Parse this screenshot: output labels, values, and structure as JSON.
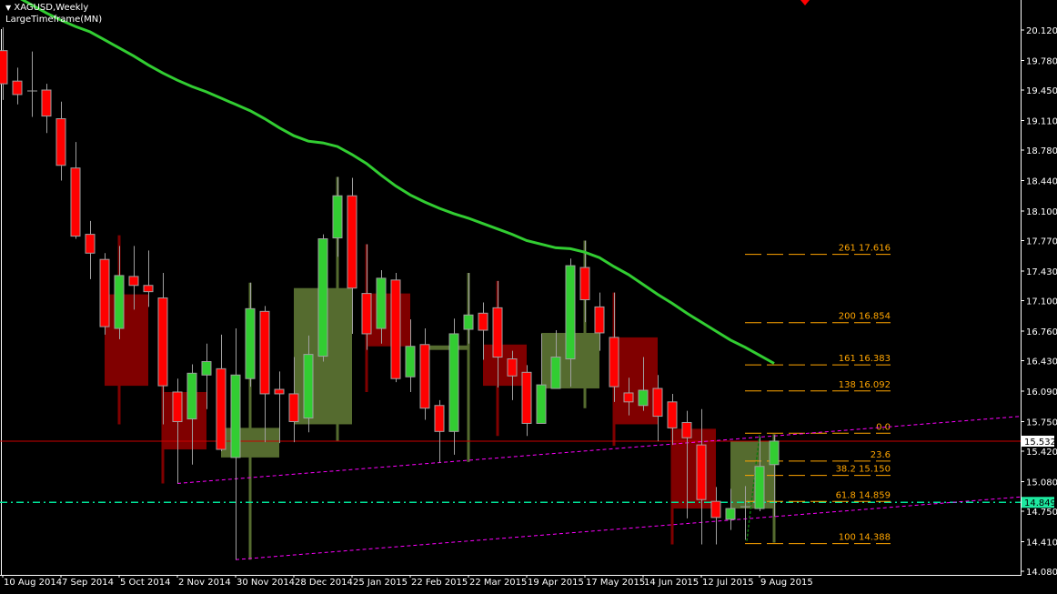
{
  "header": {
    "symbol_title": "XAGUSD,Weekly",
    "indicator": "LargeTimeframe(MN)"
  },
  "colors": {
    "bull": "#32cd32",
    "bear": "#ff0000",
    "candle_border": "#a0a0a0",
    "monthly_bull": "#556b2f",
    "monthly_bear": "#800000",
    "ma": "#32cd32",
    "fib": "#ffa500",
    "trendline": "#ff00ff",
    "bid_line": "#cc0000",
    "level_line": "#00e69a"
  },
  "chart_data": {
    "type": "candlestick",
    "price_axis": {
      "range": [
        14.08,
        20.12
      ],
      "ticks": [
        "20.120",
        "19.780",
        "19.450",
        "19.110",
        "18.780",
        "18.440",
        "18.100",
        "17.770",
        "17.430",
        "17.100",
        "16.760",
        "16.430",
        "16.090",
        "15.750",
        "15.420",
        "15.080",
        "14.750",
        "14.410",
        "14.080"
      ]
    },
    "time_axis": {
      "labels": [
        "10 Aug 2014",
        "7 Sep 2014",
        "5 Oct 2014",
        "2 Nov 2014",
        "30 Nov 2014",
        "28 Dec 2014",
        "25 Jan 2015",
        "22 Feb 2015",
        "22 Mar 2015",
        "19 Apr 2015",
        "17 May 2015",
        "14 Jun 2015",
        "12 Jul 2015",
        "9 Aug 2015"
      ],
      "label_every_weeks": 4
    },
    "weekly": [
      [
        19.89,
        19.52,
        20.15,
        19.34
      ],
      [
        19.55,
        19.4,
        19.7,
        19.29
      ],
      [
        19.44,
        19.44,
        19.88,
        19.15
      ],
      [
        19.45,
        19.16,
        19.52,
        18.97
      ],
      [
        19.13,
        18.61,
        19.32,
        18.44
      ],
      [
        18.58,
        17.82,
        18.87,
        17.79
      ],
      [
        17.84,
        17.63,
        17.99,
        17.34
      ],
      [
        17.56,
        16.81,
        17.63,
        16.72
      ],
      [
        16.79,
        17.38,
        17.71,
        16.67
      ],
      [
        17.37,
        17.27,
        17.71,
        17.0
      ],
      [
        17.27,
        17.2,
        17.66,
        17.03
      ],
      [
        17.13,
        16.15,
        17.41,
        15.72
      ],
      [
        16.08,
        15.75,
        16.23,
        15.06
      ],
      [
        15.78,
        16.29,
        16.39,
        15.27
      ],
      [
        16.27,
        16.42,
        16.62,
        15.89
      ],
      [
        16.34,
        15.44,
        16.72,
        15.42
      ],
      [
        15.35,
        16.27,
        16.79,
        14.21
      ],
      [
        16.23,
        17.01,
        17.3,
        16.14
      ],
      [
        16.98,
        16.06,
        17.04,
        15.52
      ],
      [
        16.11,
        16.06,
        16.31,
        15.51
      ],
      [
        16.06,
        15.75,
        16.47,
        15.52
      ],
      [
        15.79,
        16.5,
        16.71,
        15.63
      ],
      [
        16.48,
        17.79,
        17.84,
        16.42
      ],
      [
        17.8,
        18.27,
        18.48,
        17.59
      ],
      [
        18.27,
        17.24,
        18.47,
        16.73
      ],
      [
        17.18,
        16.73,
        17.73,
        16.55
      ],
      [
        16.79,
        17.35,
        17.44,
        16.62
      ],
      [
        17.33,
        16.23,
        17.41,
        16.19
      ],
      [
        16.25,
        16.59,
        16.89,
        16.08
      ],
      [
        16.61,
        15.9,
        16.79,
        15.77
      ],
      [
        15.93,
        15.64,
        15.99,
        15.29
      ],
      [
        15.64,
        16.73,
        16.9,
        15.38
      ],
      [
        16.78,
        16.94,
        17.41,
        16.62
      ],
      [
        16.96,
        16.77,
        17.08,
        16.44
      ],
      [
        17.02,
        16.47,
        17.32,
        16.13
      ],
      [
        16.45,
        16.26,
        16.54,
        15.99
      ],
      [
        16.3,
        15.73,
        16.38,
        15.59
      ],
      [
        15.73,
        16.16,
        16.73,
        15.73
      ],
      [
        16.12,
        16.47,
        16.77,
        16.12
      ],
      [
        16.45,
        17.49,
        17.57,
        16.14
      ],
      [
        17.47,
        17.11,
        17.77,
        16.86
      ],
      [
        17.03,
        16.74,
        17.19,
        16.54
      ],
      [
        16.69,
        16.14,
        17.19,
        15.97
      ],
      [
        16.07,
        15.97,
        16.24,
        15.82
      ],
      [
        15.93,
        16.1,
        16.47,
        15.87
      ],
      [
        16.12,
        15.81,
        16.27,
        15.53
      ],
      [
        15.97,
        15.68,
        16.06,
        15.49
      ],
      [
        15.74,
        15.57,
        15.87,
        14.67
      ],
      [
        15.49,
        14.88,
        15.89,
        14.38
      ],
      [
        14.86,
        14.68,
        15.02,
        14.38
      ],
      [
        14.66,
        14.78,
        15.0,
        14.54
      ],
      [
        14.8,
        14.8,
        15.03,
        14.43
      ],
      [
        14.78,
        15.25,
        15.58,
        14.75
      ],
      [
        15.27,
        15.532,
        15.6,
        14.69
      ]
    ],
    "monthly": [
      {
        "weeks": [
          7,
          10
        ],
        "ohlc": [
          17.17,
          16.15,
          17.83,
          15.72
        ]
      },
      {
        "weeks": [
          11,
          14
        ],
        "ohlc": [
          16.08,
          15.44,
          16.72,
          15.06
        ]
      },
      {
        "weeks": [
          15,
          19
        ],
        "ohlc": [
          15.35,
          15.68,
          17.3,
          14.21
        ]
      },
      {
        "weeks": [
          20,
          24
        ],
        "ohlc": [
          15.72,
          17.24,
          18.48,
          15.53
        ]
      },
      {
        "weeks": [
          25,
          28
        ],
        "ohlc": [
          17.18,
          16.59,
          17.73,
          16.08
        ]
      },
      {
        "weeks": [
          29,
          32
        ],
        "ohlc": [
          16.55,
          16.6,
          17.41,
          15.3
        ]
      },
      {
        "weeks": [
          33,
          36
        ],
        "ohlc": [
          16.61,
          16.15,
          17.32,
          15.59
        ]
      },
      {
        "weeks": [
          37,
          41
        ],
        "ohlc": [
          16.12,
          16.74,
          17.77,
          15.9
        ]
      },
      {
        "weeks": [
          42,
          45
        ],
        "ohlc": [
          16.69,
          15.72,
          17.19,
          15.48
        ]
      },
      {
        "weeks": [
          46,
          49
        ],
        "ohlc": [
          15.67,
          14.78,
          15.9,
          14.38
        ]
      },
      {
        "weeks": [
          50,
          53
        ],
        "ohlc": [
          14.78,
          15.53,
          15.61,
          14.4
        ]
      }
    ],
    "moving_average": [
      20.56,
      20.49,
      20.4,
      20.31,
      20.23,
      20.16,
      20.1,
      20.01,
      19.92,
      19.83,
      19.73,
      19.64,
      19.56,
      19.49,
      19.43,
      19.36,
      19.29,
      19.22,
      19.13,
      19.03,
      18.94,
      18.88,
      18.86,
      18.82,
      18.73,
      18.63,
      18.5,
      18.38,
      18.28,
      18.2,
      18.13,
      18.07,
      18.02,
      17.96,
      17.9,
      17.84,
      17.77,
      17.73,
      17.69,
      17.68,
      17.64,
      17.58,
      17.48,
      17.39,
      17.28,
      17.17,
      17.07,
      16.96,
      16.86,
      16.76,
      16.66,
      16.58,
      16.49,
      16.4
    ],
    "trendlines": [
      {
        "from": {
          "week": 12,
          "price": 15.06
        },
        "to": {
          "week": 53,
          "price": 15.59
        }
      },
      {
        "from": {
          "week": 16,
          "price": 14.21
        },
        "to": {
          "week": 53,
          "price": 14.69
        }
      }
    ],
    "fibonacci": {
      "weeks": [
        51,
        61
      ],
      "levels": [
        {
          "label": "261  17.616",
          "price": 17.616
        },
        {
          "label": "200  16.854",
          "price": 16.854
        },
        {
          "label": "161  16.383",
          "price": 16.383
        },
        {
          "label": "138  16.092",
          "price": 16.092
        },
        {
          "label": "0.0",
          "price": 15.62
        },
        {
          "label": "23.6",
          "price": 15.31
        },
        {
          "label": "38.2  15.150",
          "price": 15.15
        },
        {
          "label": "61.8  14.859",
          "price": 14.859
        },
        {
          "label": "100  14.388",
          "price": 14.388
        }
      ]
    },
    "bid": {
      "label": "15.532",
      "price": 15.532
    },
    "level_line": {
      "label": "14.849",
      "price": 14.849
    }
  }
}
